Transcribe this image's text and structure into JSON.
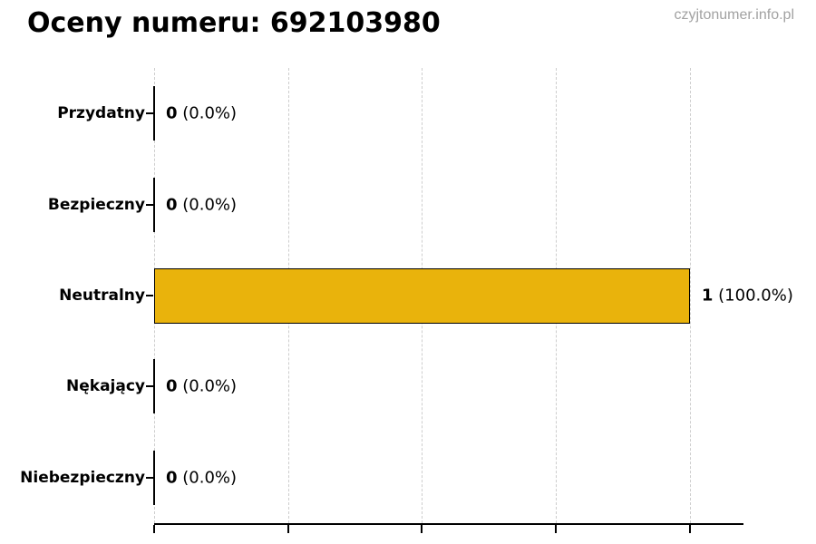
{
  "title": "Oceny numeru: 692103980",
  "watermark": "czyjtonumer.info.pl",
  "chart_data": {
    "type": "bar",
    "orientation": "horizontal",
    "title": "Oceny numeru: 692103980",
    "categories": [
      "Przydatny",
      "Bezpieczny",
      "Neutralny",
      "Nękający",
      "Niebezpieczny"
    ],
    "values": [
      0,
      0,
      1,
      0,
      0
    ],
    "value_labels": [
      {
        "count": "0",
        "pct": "(0.0%)"
      },
      {
        "count": "0",
        "pct": "(0.0%)"
      },
      {
        "count": "1",
        "pct": "(100.0%)"
      },
      {
        "count": "0",
        "pct": "(0.0%)"
      },
      {
        "count": "0",
        "pct": "(0.0%)"
      }
    ],
    "xlim": [
      0,
      1.1
    ],
    "xticks": [
      0,
      0.25,
      0.5,
      0.75,
      1.0
    ],
    "xtick_labels_visible": false,
    "grid": "vertical-dashed",
    "legend": "none",
    "bar_color": "#e9b30c",
    "bar_border_color": "#000000",
    "gridline_color": "#cdcdcd",
    "axis_color": "#000000"
  }
}
